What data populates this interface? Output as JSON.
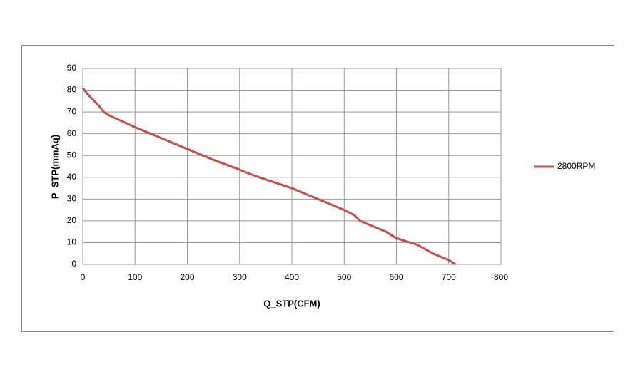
{
  "chart_data": {
    "type": "line",
    "x_label": "Q_STP(CFM)",
    "y_label": "P_STP(mmAq)",
    "x": [
      0,
      10,
      20,
      30,
      40,
      50,
      100,
      150,
      200,
      250,
      300,
      320,
      350,
      400,
      450,
      500,
      520,
      530,
      580,
      600,
      640,
      670,
      700,
      713
    ],
    "series": [
      {
        "name": "2800RPM",
        "color": "#c0504d",
        "values": [
          81,
          78,
          75.5,
          73,
          70,
          68.5,
          63,
          58,
          53,
          48,
          43.5,
          41.5,
          39,
          35,
          30,
          25,
          22.5,
          20,
          15,
          12,
          9,
          5,
          2,
          0
        ]
      }
    ],
    "xlim": [
      0,
      800
    ],
    "xticks": [
      0,
      100,
      200,
      300,
      400,
      500,
      600,
      700,
      800
    ],
    "ylim": [
      0,
      90
    ],
    "yticks": [
      0,
      10,
      20,
      30,
      40,
      50,
      60,
      70,
      80,
      90
    ],
    "grid": true,
    "legend": "right"
  }
}
